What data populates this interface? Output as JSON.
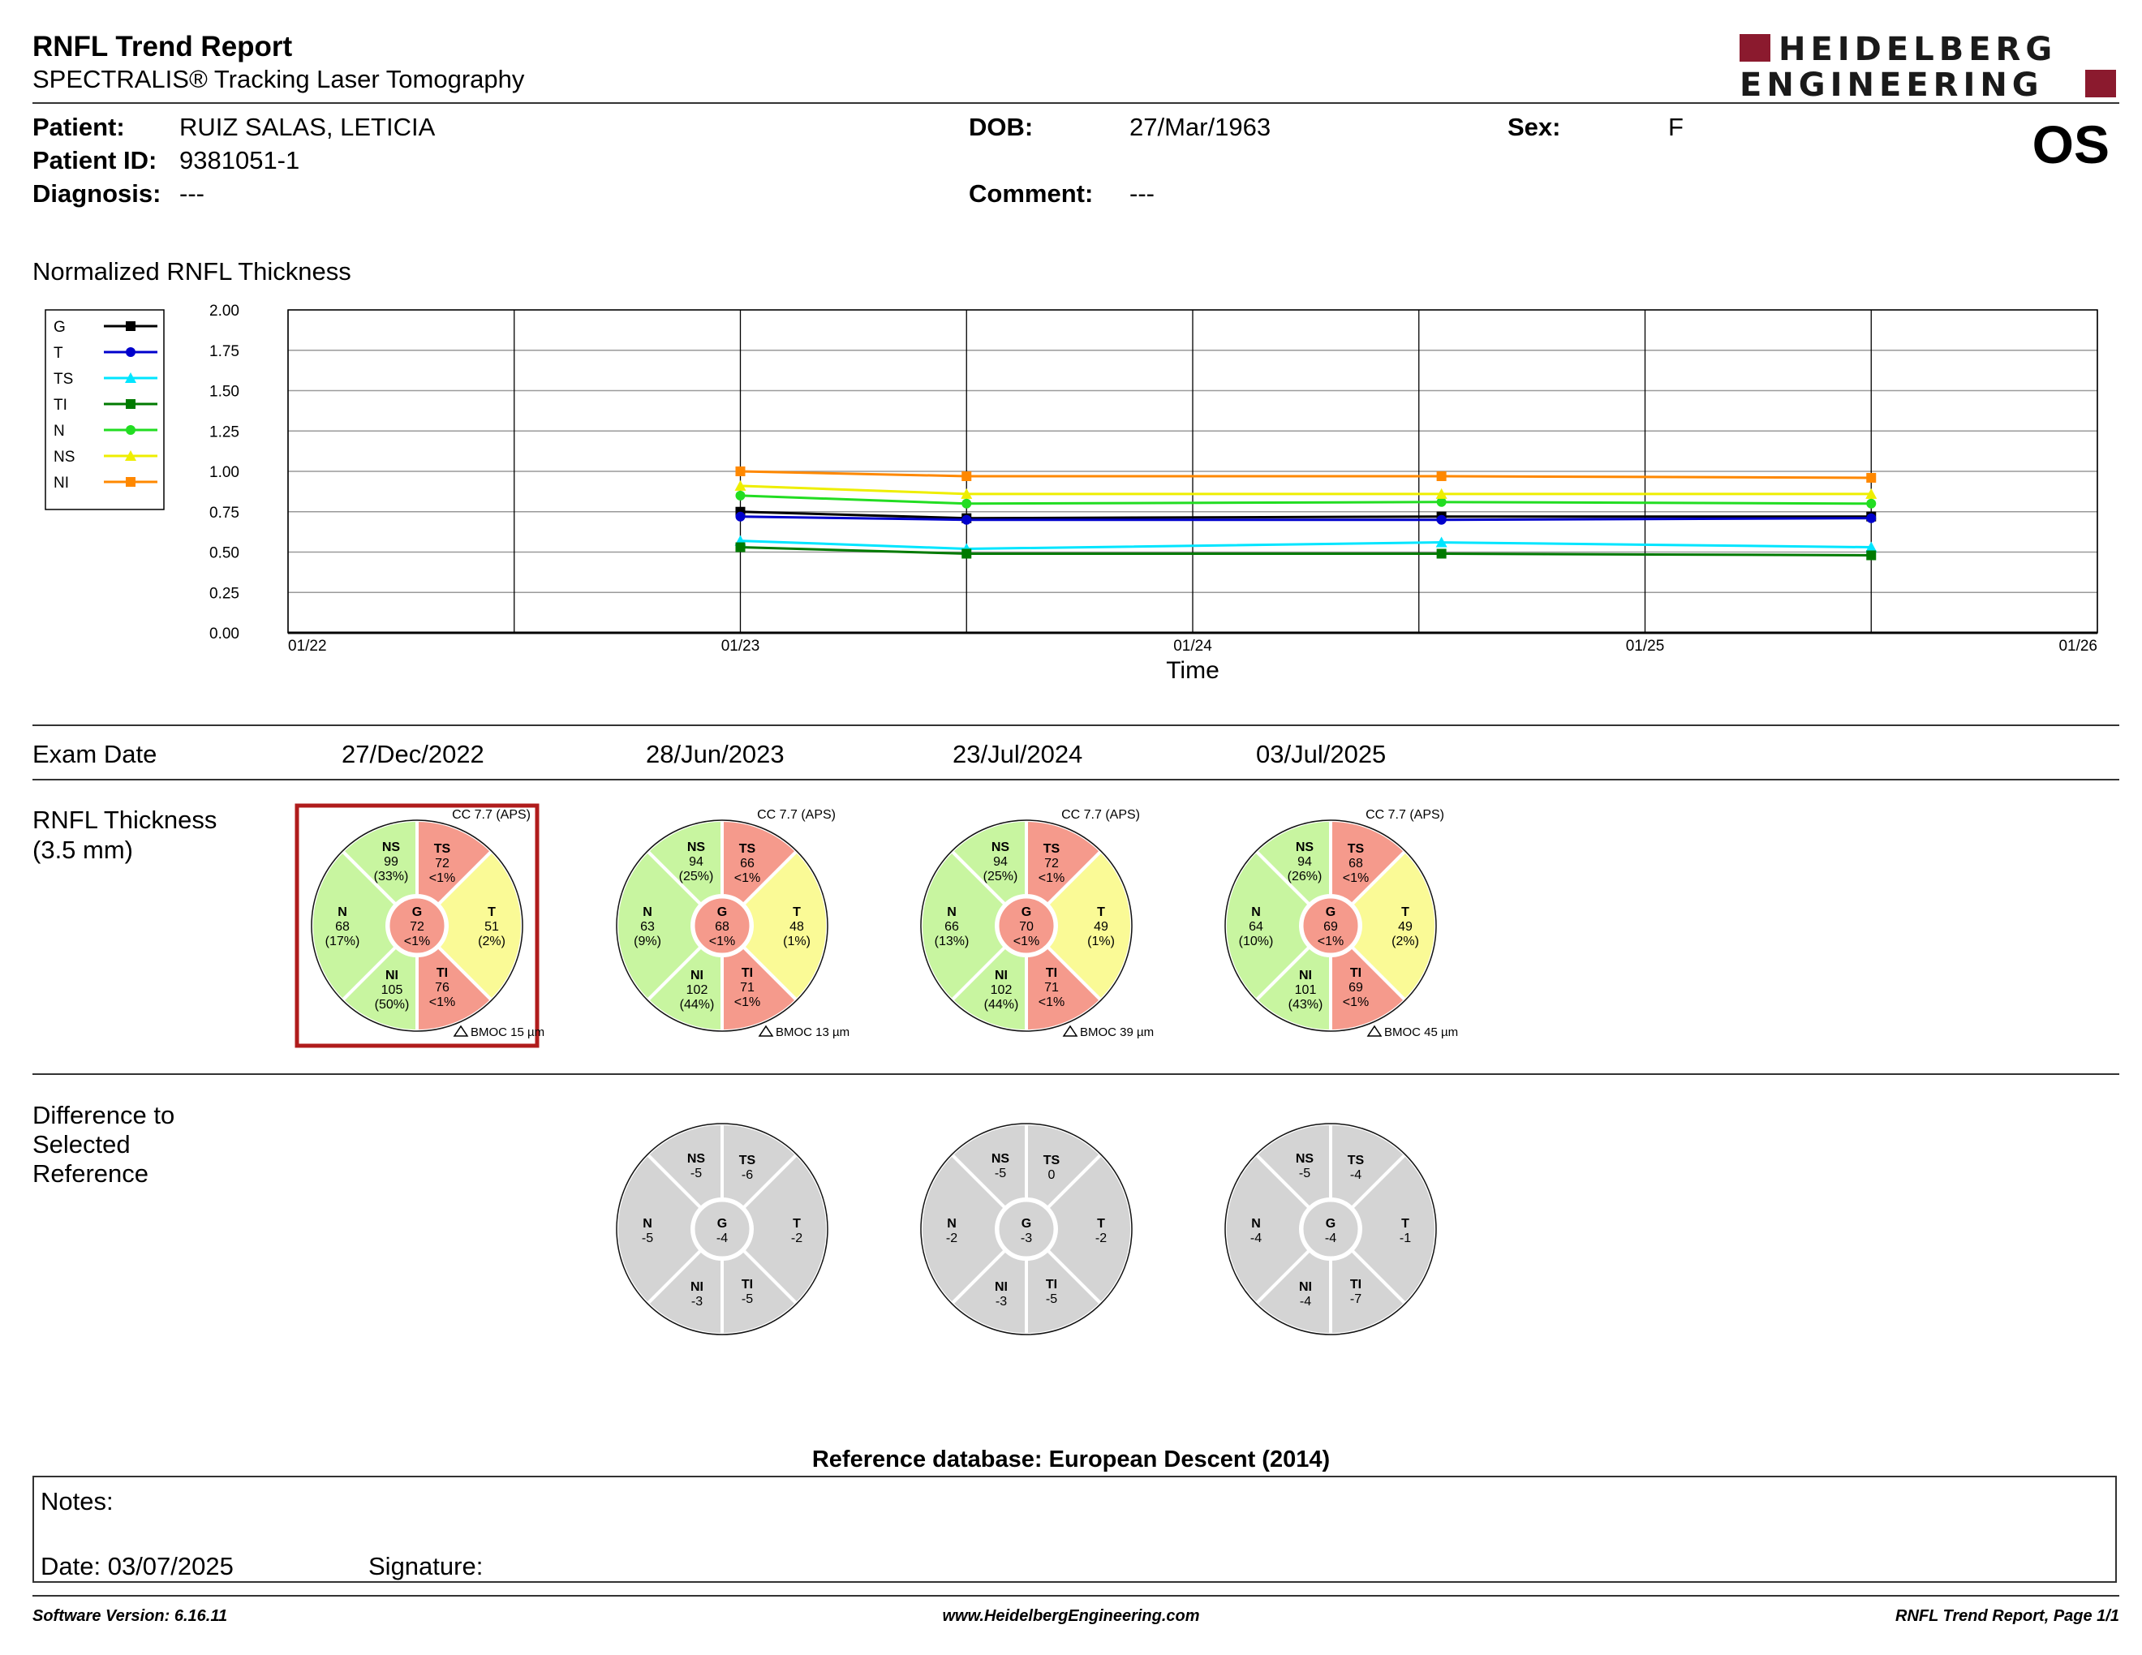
{
  "report": {
    "title": "RNFL Trend Report",
    "subtitle": "SPECTRALIS® Tracking Laser Tomography",
    "brand_line1": "HEIDELBERG",
    "brand_line2": "ENGINEERING",
    "brand_color": "#8b1a2e",
    "eye": "OS"
  },
  "patient": {
    "patient_label": "Patient:",
    "patient_value": "RUIZ SALAS, LETICIA",
    "id_label": "Patient ID:",
    "id_value": "9381051-1",
    "diagnosis_label": "Diagnosis:",
    "diagnosis_value": "---",
    "dob_label": "DOB:",
    "dob_value": "27/Mar/1963",
    "comment_label": "Comment:",
    "comment_value": "---",
    "sex_label": "Sex:",
    "sex_value": "F"
  },
  "trend": {
    "section_title": "Normalized RNFL Thickness",
    "chart_data": {
      "type": "line",
      "xlabel": "Time",
      "ylabel": "",
      "ylim": [
        0,
        2
      ],
      "yticks": [
        "0.00",
        "0.25",
        "0.50",
        "0.75",
        "1.00",
        "1.25",
        "1.50",
        "1.75",
        "2.00"
      ],
      "xticks": [
        {
          "t": 2022.0,
          "label": "01/22"
        },
        {
          "t": 2023.0,
          "label": "01/23"
        },
        {
          "t": 2024.0,
          "label": "01/24"
        },
        {
          "t": 2025.0,
          "label": "01/25"
        },
        {
          "t": 2026.0,
          "label": "01/26"
        }
      ],
      "grid": true,
      "legend_position": "left",
      "exam_dates": [
        "27/Dec/2022",
        "28/Jun/2023",
        "23/Jul/2024",
        "03/Jul/2025"
      ],
      "exam_times": [
        2023.0,
        2023.5,
        2024.55,
        2025.5
      ],
      "series": [
        {
          "name": "G",
          "color": "#000000",
          "marker": "square",
          "values": [
            0.75,
            0.71,
            0.72,
            0.72
          ]
        },
        {
          "name": "T",
          "color": "#0000cc",
          "marker": "circle",
          "values": [
            0.72,
            0.7,
            0.7,
            0.71
          ]
        },
        {
          "name": "TS",
          "color": "#00e5ff",
          "marker": "triangle",
          "values": [
            0.57,
            0.52,
            0.56,
            0.53
          ]
        },
        {
          "name": "TI",
          "color": "#007a00",
          "marker": "square",
          "values": [
            0.53,
            0.49,
            0.49,
            0.48
          ]
        },
        {
          "name": "N",
          "color": "#22dd22",
          "marker": "circle",
          "values": [
            0.85,
            0.8,
            0.81,
            0.8
          ]
        },
        {
          "name": "NS",
          "color": "#eeee00",
          "marker": "triangle",
          "values": [
            0.91,
            0.86,
            0.86,
            0.86
          ]
        },
        {
          "name": "NI",
          "color": "#ff8800",
          "marker": "square",
          "values": [
            1.0,
            0.97,
            0.97,
            0.96
          ]
        }
      ]
    }
  },
  "exams": {
    "exam_date_label": "Exam Date",
    "thickness_label_1": "RNFL Thickness",
    "thickness_label_2": "(3.5 mm)",
    "difference_label_1": "Difference to",
    "difference_label_2": "Selected",
    "difference_label_3": "Reference",
    "colors": {
      "green": "#c8f5a0",
      "yellow": "#fafa96",
      "red": "#f59a8c",
      "gray": "#d4d4d4",
      "reference_frame": "#b01c1c"
    },
    "items": [
      {
        "date": "27/Dec/2022",
        "cc": "CC 7.7 (APS)",
        "bmoc": "BMOC 15 µm",
        "reference": true,
        "sectors": {
          "G": {
            "v": "72",
            "p": "<1%",
            "c": "red"
          },
          "NS": {
            "v": "99",
            "p": "(33%)",
            "c": "green"
          },
          "TS": {
            "v": "72",
            "p": "<1%",
            "c": "red"
          },
          "T": {
            "v": "51",
            "p": "(2%)",
            "c": "yellow"
          },
          "TI": {
            "v": "76",
            "p": "<1%",
            "c": "red"
          },
          "NI": {
            "v": "105",
            "p": "(50%)",
            "c": "green"
          },
          "N": {
            "v": "68",
            "p": "(17%)",
            "c": "green"
          }
        }
      },
      {
        "date": "28/Jun/2023",
        "cc": "CC 7.7 (APS)",
        "bmoc": "BMOC 13 µm",
        "reference": false,
        "sectors": {
          "G": {
            "v": "68",
            "p": "<1%",
            "c": "red"
          },
          "NS": {
            "v": "94",
            "p": "(25%)",
            "c": "green"
          },
          "TS": {
            "v": "66",
            "p": "<1%",
            "c": "red"
          },
          "T": {
            "v": "48",
            "p": "(1%)",
            "c": "yellow"
          },
          "TI": {
            "v": "71",
            "p": "<1%",
            "c": "red"
          },
          "NI": {
            "v": "102",
            "p": "(44%)",
            "c": "green"
          },
          "N": {
            "v": "63",
            "p": "(9%)",
            "c": "green"
          }
        },
        "diff": {
          "G": "-4",
          "NS": "-5",
          "TS": "-6",
          "T": "-2",
          "TI": "-5",
          "NI": "-3",
          "N": "-5"
        }
      },
      {
        "date": "23/Jul/2024",
        "cc": "CC 7.7 (APS)",
        "bmoc": "BMOC 39 µm",
        "reference": false,
        "sectors": {
          "G": {
            "v": "70",
            "p": "<1%",
            "c": "red"
          },
          "NS": {
            "v": "94",
            "p": "(25%)",
            "c": "green"
          },
          "TS": {
            "v": "72",
            "p": "<1%",
            "c": "red"
          },
          "T": {
            "v": "49",
            "p": "(1%)",
            "c": "yellow"
          },
          "TI": {
            "v": "71",
            "p": "<1%",
            "c": "red"
          },
          "NI": {
            "v": "102",
            "p": "(44%)",
            "c": "green"
          },
          "N": {
            "v": "66",
            "p": "(13%)",
            "c": "green"
          }
        },
        "diff": {
          "G": "-3",
          "NS": "-5",
          "TS": "0",
          "T": "-2",
          "TI": "-5",
          "NI": "-3",
          "N": "-2"
        }
      },
      {
        "date": "03/Jul/2025",
        "cc": "CC 7.7 (APS)",
        "bmoc": "BMOC 45 µm",
        "reference": false,
        "sectors": {
          "G": {
            "v": "69",
            "p": "<1%",
            "c": "red"
          },
          "NS": {
            "v": "94",
            "p": "(26%)",
            "c": "green"
          },
          "TS": {
            "v": "68",
            "p": "<1%",
            "c": "red"
          },
          "T": {
            "v": "49",
            "p": "(2%)",
            "c": "yellow"
          },
          "TI": {
            "v": "69",
            "p": "<1%",
            "c": "red"
          },
          "NI": {
            "v": "101",
            "p": "(43%)",
            "c": "green"
          },
          "N": {
            "v": "64",
            "p": "(10%)",
            "c": "green"
          }
        },
        "diff": {
          "G": "-4",
          "NS": "-5",
          "TS": "-4",
          "T": "-1",
          "TI": "-7",
          "NI": "-4",
          "N": "-4"
        }
      }
    ]
  },
  "reference_db": "Reference database: European Descent (2014)",
  "notes": {
    "notes_label": "Notes:",
    "date_label": "Date: 03/07/2025",
    "signature_label": "Signature:"
  },
  "footer": {
    "software": "Software Version: 6.16.11",
    "website": "www.HeidelbergEngineering.com",
    "page": "RNFL Trend Report, Page 1/1"
  }
}
